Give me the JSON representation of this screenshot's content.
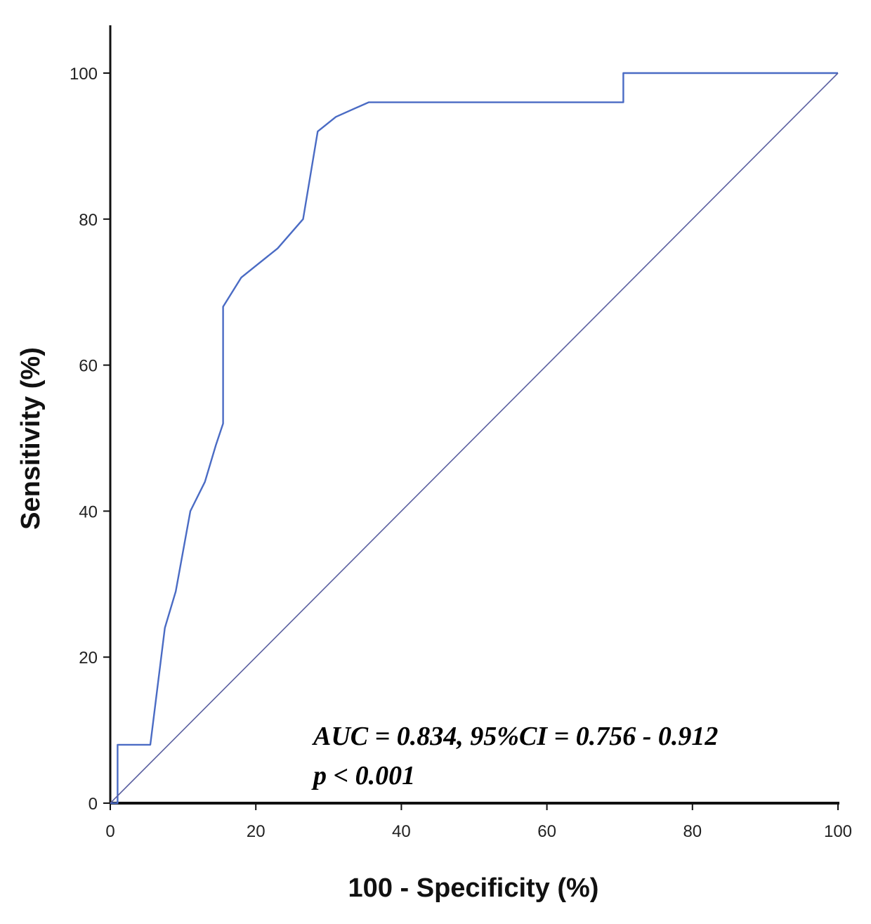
{
  "chart_data": {
    "type": "line",
    "xlabel": "100 - Specificity (%)",
    "ylabel": "Sensitivity (%)",
    "xlim": [
      0,
      100
    ],
    "ylim": [
      0,
      100
    ],
    "x_ticks": [
      "0",
      "20",
      "40",
      "60",
      "80",
      "100"
    ],
    "y_ticks": [
      "0",
      "20",
      "40",
      "60",
      "80",
      "100"
    ],
    "grid": false,
    "legend": "none",
    "series": [
      {
        "color": "#4a6bc4",
        "points": [
          [
            0,
            0
          ],
          [
            1,
            0
          ],
          [
            1,
            8
          ],
          [
            5.5,
            8
          ],
          [
            7.5,
            24
          ],
          [
            9,
            29
          ],
          [
            11,
            40
          ],
          [
            13,
            44
          ],
          [
            14.5,
            49
          ],
          [
            15.5,
            52
          ],
          [
            15.5,
            68
          ],
          [
            18,
            72
          ],
          [
            23,
            76
          ],
          [
            26.5,
            80
          ],
          [
            28.5,
            92
          ],
          [
            31,
            94
          ],
          [
            35.5,
            96
          ],
          [
            70.5,
            96
          ],
          [
            70.5,
            100
          ],
          [
            100,
            100
          ]
        ]
      },
      {
        "color": "#5a5fa0",
        "points": [
          [
            0,
            0
          ],
          [
            100,
            100
          ]
        ]
      }
    ],
    "annotations": [
      "AUC = 0.834, 95%CI = 0.756 - 0.912",
      "p < 0.001"
    ]
  }
}
